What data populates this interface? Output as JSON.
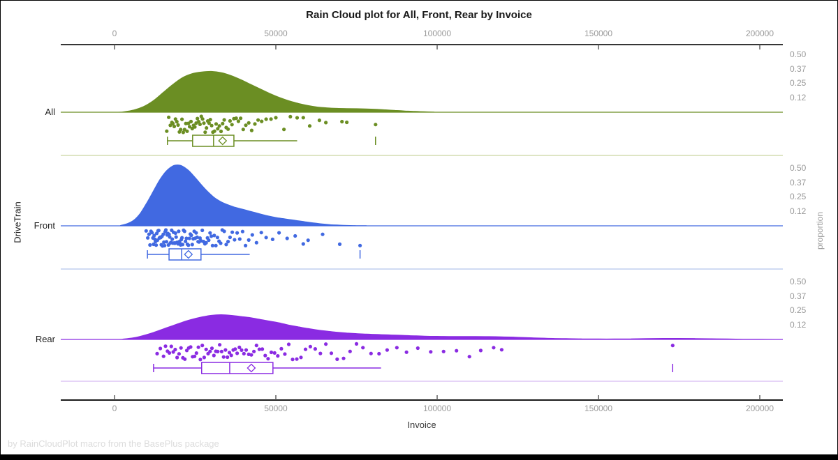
{
  "title": "Rain Cloud plot for All, Front, Rear by Invoice",
  "footer": "by RainCloudPlot macro from the BasePlus package",
  "chart_data": {
    "type": "raincloud",
    "title": "Rain Cloud plot for All, Front, Rear by Invoice",
    "xlabel": "Invoice",
    "ylabel_left": "DriveTrain",
    "ylabel_right": "proportion",
    "x_ticks": [
      0,
      50000,
      100000,
      150000,
      200000
    ],
    "x_tick_labels": [
      "0",
      "50000",
      "100000",
      "150000",
      "200000"
    ],
    "x_range": [
      -16700,
      207100
    ],
    "proportion_ticks": [
      0.5,
      0.37,
      0.25,
      0.12
    ],
    "proportion_tick_labels": [
      "0.50",
      "0.37",
      "0.25",
      "0.12"
    ],
    "grid": false,
    "legend": "none",
    "groups": [
      {
        "name": "All",
        "color": "#6b8e23",
        "separator_color": "#c9d5a1",
        "density": [
          [
            0,
            0
          ],
          [
            3000,
            0.005
          ],
          [
            6000,
            0.02
          ],
          [
            9000,
            0.05
          ],
          [
            12000,
            0.1
          ],
          [
            15000,
            0.17
          ],
          [
            18000,
            0.24
          ],
          [
            21000,
            0.3
          ],
          [
            24000,
            0.335
          ],
          [
            27000,
            0.35
          ],
          [
            30000,
            0.355
          ],
          [
            33000,
            0.345
          ],
          [
            36000,
            0.32
          ],
          [
            39000,
            0.285
          ],
          [
            42000,
            0.245
          ],
          [
            45000,
            0.205
          ],
          [
            48000,
            0.165
          ],
          [
            51000,
            0.13
          ],
          [
            54000,
            0.1
          ],
          [
            57000,
            0.077
          ],
          [
            60000,
            0.058
          ],
          [
            63000,
            0.045
          ],
          [
            66000,
            0.038
          ],
          [
            69000,
            0.034
          ],
          [
            72000,
            0.032
          ],
          [
            75000,
            0.031
          ],
          [
            78000,
            0.029
          ],
          [
            81000,
            0.026
          ],
          [
            84000,
            0.021
          ],
          [
            87000,
            0.016
          ],
          [
            90000,
            0.011
          ],
          [
            93000,
            0.007
          ],
          [
            96000,
            0.004
          ],
          [
            99000,
            0.002
          ],
          [
            102000,
            0
          ]
        ],
        "box": {
          "whisker_low": 16400,
          "q1": 24200,
          "median": 30700,
          "mean": 33500,
          "q3": 37000,
          "whisker_high": 56600,
          "outliers": [
            80900
          ]
        },
        "points": [
          16200,
          16800,
          17300,
          17800,
          18100,
          18500,
          18900,
          19300,
          19700,
          20100,
          20500,
          20900,
          21300,
          21700,
          22100,
          22500,
          22900,
          23300,
          23700,
          24100,
          24500,
          24900,
          25300,
          25700,
          26100,
          26500,
          26900,
          27300,
          27700,
          28100,
          28500,
          28900,
          29300,
          29700,
          30100,
          30500,
          31000,
          31500,
          32000,
          32500,
          33000,
          33500,
          34000,
          34600,
          35200,
          35800,
          36400,
          37000,
          37700,
          38400,
          39100,
          39900,
          40700,
          41600,
          42500,
          43500,
          44500,
          45600,
          47000,
          48500,
          50000,
          52500,
          54500,
          56600,
          58500,
          60500,
          63500,
          65500,
          70500,
          72000,
          80900
        ]
      },
      {
        "name": "Front",
        "color": "#4169e1",
        "separator_color": "#b3c5ec",
        "density": [
          [
            0,
            0
          ],
          [
            2000,
            0.005
          ],
          [
            4000,
            0.02
          ],
          [
            6000,
            0.05
          ],
          [
            8000,
            0.11
          ],
          [
            10000,
            0.2
          ],
          [
            12000,
            0.3
          ],
          [
            14000,
            0.4
          ],
          [
            16000,
            0.475
          ],
          [
            18000,
            0.52
          ],
          [
            19500,
            0.53
          ],
          [
            21000,
            0.52
          ],
          [
            23000,
            0.48
          ],
          [
            25000,
            0.42
          ],
          [
            27000,
            0.355
          ],
          [
            29000,
            0.295
          ],
          [
            31000,
            0.245
          ],
          [
            33000,
            0.21
          ],
          [
            35000,
            0.185
          ],
          [
            37000,
            0.165
          ],
          [
            39000,
            0.15
          ],
          [
            41000,
            0.135
          ],
          [
            43000,
            0.12
          ],
          [
            45000,
            0.105
          ],
          [
            47000,
            0.09
          ],
          [
            49000,
            0.078
          ],
          [
            51000,
            0.068
          ],
          [
            53000,
            0.06
          ],
          [
            55000,
            0.052
          ],
          [
            57000,
            0.044
          ],
          [
            59000,
            0.036
          ],
          [
            61000,
            0.028
          ],
          [
            63000,
            0.021
          ],
          [
            65000,
            0.015
          ],
          [
            67000,
            0.01
          ],
          [
            69000,
            0.007
          ],
          [
            71000,
            0.005
          ],
          [
            73000,
            0.003
          ],
          [
            75000,
            0.002
          ],
          [
            78000,
            0.001
          ],
          [
            81000,
            0
          ]
        ],
        "box": {
          "whisker_low": 10200,
          "q1": 16900,
          "median": 20800,
          "mean": 22900,
          "q3": 26800,
          "whisker_high": 41900,
          "outliers": [
            76100
          ]
        },
        "points": [
          9800,
          10300,
          10700,
          11000,
          11300,
          11600,
          11900,
          12100,
          12300,
          12500,
          12700,
          12900,
          13100,
          13300,
          13500,
          13700,
          13900,
          14100,
          14300,
          14500,
          14700,
          14900,
          15100,
          15300,
          15500,
          15700,
          15900,
          16100,
          16300,
          16500,
          16700,
          16900,
          17100,
          17300,
          17500,
          17700,
          17900,
          18100,
          18300,
          18500,
          18700,
          18900,
          19100,
          19300,
          19500,
          19700,
          19900,
          20100,
          20300,
          20500,
          20700,
          20900,
          21100,
          21400,
          21700,
          22000,
          22300,
          22600,
          22900,
          23200,
          23500,
          23800,
          24100,
          24400,
          24700,
          25000,
          25300,
          25600,
          25900,
          26200,
          26500,
          26800,
          27200,
          27600,
          28000,
          28400,
          28800,
          29200,
          29600,
          30000,
          30400,
          30900,
          31400,
          31900,
          32400,
          32900,
          33400,
          34000,
          34600,
          35200,
          35800,
          36500,
          37200,
          38000,
          38800,
          39700,
          40600,
          41600,
          42700,
          44000,
          45500,
          47000,
          49000,
          51000,
          53500,
          56000,
          58500,
          60000,
          64500,
          69800,
          76100
        ]
      },
      {
        "name": "Rear",
        "color": "#8a2be2",
        "separator_color": "#d8baf2",
        "density": [
          [
            0,
            0
          ],
          [
            3000,
            0.005
          ],
          [
            6000,
            0.015
          ],
          [
            9000,
            0.035
          ],
          [
            12000,
            0.06
          ],
          [
            15000,
            0.09
          ],
          [
            18000,
            0.12
          ],
          [
            21000,
            0.15
          ],
          [
            24000,
            0.175
          ],
          [
            27000,
            0.195
          ],
          [
            30000,
            0.21
          ],
          [
            33000,
            0.215
          ],
          [
            36000,
            0.21
          ],
          [
            39000,
            0.2
          ],
          [
            42000,
            0.19
          ],
          [
            45000,
            0.175
          ],
          [
            48000,
            0.16
          ],
          [
            51000,
            0.145
          ],
          [
            54000,
            0.125
          ],
          [
            57000,
            0.11
          ],
          [
            60000,
            0.095
          ],
          [
            63000,
            0.082
          ],
          [
            66000,
            0.072
          ],
          [
            69000,
            0.063
          ],
          [
            72000,
            0.056
          ],
          [
            75000,
            0.051
          ],
          [
            78000,
            0.047
          ],
          [
            81000,
            0.044
          ],
          [
            84000,
            0.041
          ],
          [
            87000,
            0.038
          ],
          [
            90000,
            0.035
          ],
          [
            93000,
            0.032
          ],
          [
            96000,
            0.029
          ],
          [
            100000,
            0.027
          ],
          [
            104000,
            0.026
          ],
          [
            108000,
            0.026
          ],
          [
            112000,
            0.026
          ],
          [
            116000,
            0.025
          ],
          [
            120000,
            0.023
          ],
          [
            124000,
            0.02
          ],
          [
            128000,
            0.016
          ],
          [
            132000,
            0.012
          ],
          [
            136000,
            0.009
          ],
          [
            140000,
            0.007
          ],
          [
            145000,
            0.005
          ],
          [
            150000,
            0.004
          ],
          [
            155000,
            0.004
          ],
          [
            160000,
            0.005
          ],
          [
            165000,
            0.007
          ],
          [
            170000,
            0.009
          ],
          [
            175000,
            0.009
          ],
          [
            180000,
            0.008
          ],
          [
            185000,
            0.006
          ],
          [
            190000,
            0.004
          ],
          [
            195000,
            0.002
          ],
          [
            200000,
            0.001
          ],
          [
            205000,
            0
          ]
        ],
        "box": {
          "whisker_low": 12100,
          "q1": 27000,
          "median": 35700,
          "mean": 42400,
          "q3": 49100,
          "whisker_high": 82600,
          "outliers": [
            173000
          ]
        },
        "points": [
          13200,
          14200,
          15200,
          15800,
          16400,
          17000,
          17600,
          18200,
          18800,
          19400,
          20000,
          20600,
          21200,
          21800,
          22400,
          23000,
          23600,
          24200,
          24800,
          25400,
          26000,
          26600,
          27200,
          27800,
          28400,
          29000,
          29600,
          30200,
          30800,
          31400,
          32000,
          32600,
          33200,
          33800,
          34400,
          35000,
          35600,
          36200,
          36800,
          37400,
          38000,
          38700,
          39400,
          40100,
          40800,
          41600,
          42400,
          43200,
          44000,
          44900,
          45800,
          46700,
          47600,
          48600,
          49600,
          50600,
          51700,
          52800,
          54000,
          55200,
          56500,
          57800,
          59200,
          60700,
          62200,
          63800,
          65500,
          67200,
          69000,
          71000,
          73000,
          75000,
          77000,
          79500,
          82000,
          84500,
          87500,
          90500,
          94000,
          98000,
          102000,
          106000,
          110000,
          113500,
          117500,
          120000,
          173000
        ]
      }
    ]
  }
}
